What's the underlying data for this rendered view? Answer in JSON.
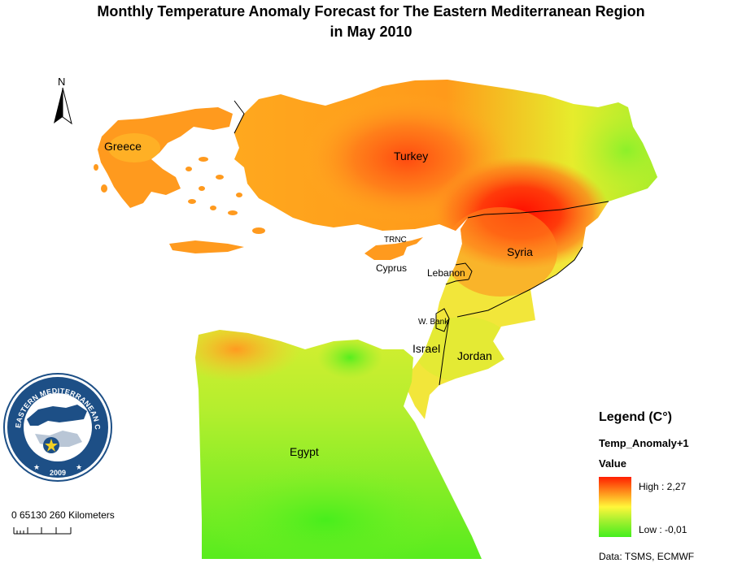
{
  "title_line1": "Monthly Temperature Anomaly Forecast for  The Eastern Mediterranean Region",
  "title_line2": "in May 2010",
  "north_label": "N",
  "places": {
    "greece": "Greece",
    "turkey": "Turkey",
    "trnc": "TRNC",
    "cyprus": "Cyprus",
    "syria": "Syria",
    "lebanon": "Lebanon",
    "w_bank": "W. Bank",
    "israel": "Israel",
    "jordan": "Jordan",
    "egypt": "Egypt"
  },
  "logo": {
    "ring_text": "EASTERN MEDITERRANEAN CLIMATE CENTRE",
    "year": "2009"
  },
  "scale": {
    "text": "0  65130   260 Kilometers"
  },
  "legend": {
    "title": "Legend (C°)",
    "field": "Temp_Anomaly+1",
    "value_heading": "Value",
    "high": "High : 2,27",
    "low": "Low : -0,01",
    "colors": {
      "high": "#ff1e00",
      "mid": "#fff73a",
      "low": "#44ee1e"
    }
  },
  "credit": "Data:  TSMS, ECMWF"
}
